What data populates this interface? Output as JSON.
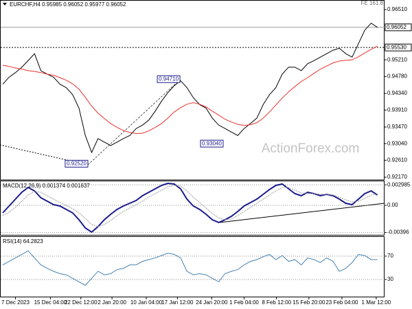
{
  "chart_data": [
    {
      "type": "line",
      "title": "EURCHF,H4  0.95985 0.96052 0.95977 0.96052",
      "annotation": "FE 161.8",
      "watermark": "ActionForex.com",
      "xlim": [
        0,
        60
      ],
      "ylim": [
        0.921,
        0.9676
      ],
      "yticks": [
        {
          "value": 0.9651,
          "label": "0.96510"
        },
        {
          "value": 0.9521,
          "label": "0.95210"
        },
        {
          "value": 0.9478,
          "label": "0.94780"
        },
        {
          "value": 0.9434,
          "label": "0.94340"
        },
        {
          "value": 0.9391,
          "label": "0.93910"
        },
        {
          "value": 0.9347,
          "label": "0.93470"
        },
        {
          "value": 0.9304,
          "label": "0.93040"
        },
        {
          "value": 0.9261,
          "label": "0.92610"
        },
        {
          "value": 0.9217,
          "label": "0.92170"
        }
      ],
      "levels": [
        0.96052,
        {
          "value": 0.9553,
          "label": "0.95530"
        }
      ],
      "point_labels": [
        {
          "label": "0.94710",
          "value": 0.9471,
          "x": 27.9
        },
        {
          "label": "0.92520",
          "value": 0.9252,
          "x": 13.4
        },
        {
          "label": "0.93040",
          "value": 0.9304,
          "x": 34.7
        }
      ],
      "series": [
        {
          "color": "#000000",
          "values": [
            0.9458,
            0.9476,
            0.9488,
            0.9502,
            0.9519,
            0.9537,
            0.9493,
            0.9484,
            0.9476,
            0.9458,
            0.9449,
            0.9431,
            0.9396,
            0.9325,
            0.9281,
            0.9317,
            0.9308,
            0.9299,
            0.9308,
            0.9317,
            0.9325,
            0.9343,
            0.9352,
            0.9365,
            0.9388,
            0.9414,
            0.9436,
            0.9454,
            0.9467,
            0.9449,
            0.9423,
            0.9405,
            0.9396,
            0.937,
            0.9352,
            0.9343,
            0.9334,
            0.9325,
            0.9343,
            0.9356,
            0.937,
            0.9405,
            0.9431,
            0.9449,
            0.9484,
            0.9502,
            0.9502,
            0.9493,
            0.9511,
            0.9519,
            0.9528,
            0.9537,
            0.9546,
            0.9551,
            0.9537,
            0.9528,
            0.9563,
            0.9598,
            0.9616,
            0.9605
          ]
        },
        {
          "color": "#e8302a",
          "values": [
            0.9507,
            0.9504,
            0.95,
            0.9497,
            0.9493,
            0.9491,
            0.9488,
            0.9484,
            0.9481,
            0.9475,
            0.9468,
            0.9459,
            0.9445,
            0.9424,
            0.9401,
            0.9383,
            0.9369,
            0.9356,
            0.9346,
            0.9338,
            0.9333,
            0.933,
            0.9331,
            0.9337,
            0.9346,
            0.9356,
            0.937,
            0.9386,
            0.9397,
            0.9406,
            0.941,
            0.9406,
            0.9399,
            0.9388,
            0.9378,
            0.9367,
            0.936,
            0.9354,
            0.9351,
            0.9353,
            0.9358,
            0.937,
            0.9386,
            0.9404,
            0.9422,
            0.9438,
            0.9452,
            0.9465,
            0.9475,
            0.9486,
            0.9497,
            0.9505,
            0.9513,
            0.9518,
            0.952,
            0.9521,
            0.9529,
            0.9539,
            0.9548,
            0.9557
          ]
        }
      ]
    },
    {
      "type": "line",
      "title": "MACD(12,26,9) 0.001374 0.001637",
      "xlim": [
        0,
        60
      ],
      "ylim": [
        -0.0044,
        0.0036
      ],
      "yticks": [
        0.002985,
        {
          "value": 0,
          "label": "0.00"
        },
        -0.00396
      ],
      "series": [
        {
          "color": "#1a1a8c",
          "width": 2,
          "values": [
            -0.0011,
            -0.0001,
            0.0009,
            0.0019,
            0.0026,
            0.0021,
            0.0011,
            0.0006,
            0.0001,
            -0.0001,
            -0.0006,
            -0.0011,
            -0.0021,
            -0.0033,
            -0.0039,
            -0.0031,
            -0.0021,
            -0.0013,
            -0.0006,
            -0.0001,
            0.0003,
            0.0007,
            0.0014,
            0.0019,
            0.0024,
            0.0029,
            0.0032,
            0.0031,
            0.0024,
            0.0009,
            -0.0001,
            -0.0006,
            -0.0013,
            -0.0021,
            -0.0025,
            -0.0021,
            -0.0016,
            -0.0009,
            -0.0001,
            0.0004,
            0.0009,
            0.0016,
            0.0023,
            0.0029,
            0.0031,
            0.0024,
            0.0017,
            0.0014,
            0.0019,
            0.0017,
            0.0014,
            0.0016,
            0.0014,
            0.0009,
            0.0003,
            0.0001,
            0.0009,
            0.0017,
            0.0021,
            0.0015
          ]
        },
        {
          "color": "#a0a0a0",
          "width": 1,
          "values": [
            -0.0015,
            -0.001,
            -0.0003,
            0.0006,
            0.0015,
            0.002,
            0.0019,
            0.0014,
            0.0009,
            0.0004,
            0,
            -0.0005,
            -0.0011,
            -0.0019,
            -0.0028,
            -0.0031,
            -0.0028,
            -0.0022,
            -0.0015,
            -0.0009,
            -0.0004,
            0.0001,
            0.0006,
            0.0012,
            0.0017,
            0.0022,
            0.0027,
            0.0029,
            0.0028,
            0.0021,
            0.0012,
            0.0004,
            -0.0004,
            -0.0012,
            -0.0018,
            -0.0021,
            -0.002,
            -0.0015,
            -0.0009,
            -0.0003,
            0.0003,
            0.0009,
            0.0015,
            0.0021,
            0.0026,
            0.0026,
            0.0022,
            0.0018,
            0.0017,
            0.0017,
            0.0016,
            0.0016,
            0.0015,
            0.0012,
            0.0008,
            0.0005,
            0.0006,
            0.001,
            0.0015,
            0.0016
          ]
        }
      ]
    },
    {
      "type": "line",
      "title": "RSI(14) 64.2823",
      "xlim": [
        0,
        60
      ],
      "ylim": [
        0,
        100
      ],
      "yticks": [
        70,
        30
      ],
      "xticks": [
        {
          "value": 2,
          "label": "7 Dec 2023"
        },
        {
          "value": 7.5,
          "label": "15 Dec 04:00"
        },
        {
          "value": 12.3,
          "label": "22 Dec 12:00"
        },
        {
          "value": 17.2,
          "label": "2 Jan 20:00"
        },
        {
          "value": 22.6,
          "label": "10 Jan 04:00"
        },
        {
          "value": 27.5,
          "label": "17 Jan 12:00"
        },
        {
          "value": 32.9,
          "label": "24 Jan 20:00"
        },
        {
          "value": 38,
          "label": "1 Feb 04:00"
        },
        {
          "value": 43.1,
          "label": "8 Feb 12:00"
        },
        {
          "value": 48.2,
          "label": "15 Feb 20:00"
        },
        {
          "value": 53.4,
          "label": "23 Feb 04:00"
        },
        {
          "value": 58.8,
          "label": "1 Mar 12:00"
        }
      ],
      "series": [
        {
          "color": "#4682b4",
          "values": [
            55,
            61,
            67,
            73,
            79,
            67,
            55,
            49,
            44,
            40,
            38,
            32,
            26,
            20,
            32,
            44,
            38,
            40,
            47,
            49,
            55,
            55,
            61,
            64,
            67,
            71,
            75,
            73,
            67,
            44,
            38,
            40,
            38,
            32,
            26,
            40,
            44,
            47,
            55,
            61,
            64,
            69,
            73,
            64,
            71,
            61,
            64,
            55,
            67,
            64,
            59,
            67,
            61,
            44,
            49,
            59,
            73,
            71,
            64,
            64
          ]
        }
      ]
    }
  ]
}
